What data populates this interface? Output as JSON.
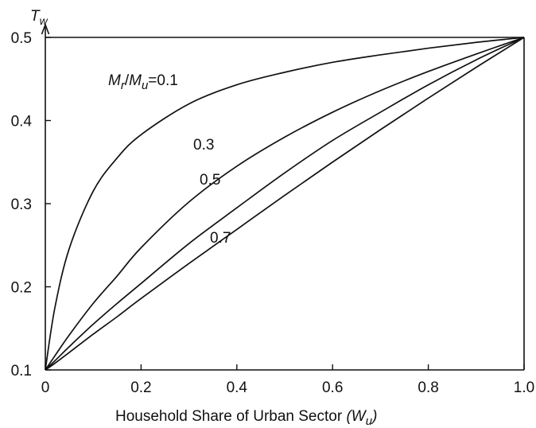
{
  "chart_data": {
    "type": "line",
    "title": "",
    "xlabel_text": "Household Share of Urban Sector",
    "xlabel_var": "W",
    "xlabel_sub": "u",
    "ylabel_var": "T",
    "ylabel_sub": "w",
    "xlim": [
      0,
      1.0
    ],
    "ylim": [
      0.1,
      0.5
    ],
    "x_ticks": [
      "0",
      "0.2",
      "0.4",
      "0.6",
      "0.8",
      "1.0"
    ],
    "y_ticks": [
      "0.1",
      "0.2",
      "0.3",
      "0.4",
      "0.5"
    ],
    "x_tick_values": [
      0,
      0.2,
      0.4,
      0.6,
      0.8,
      1.0
    ],
    "y_tick_values": [
      0.1,
      0.2,
      0.3,
      0.4,
      0.5
    ],
    "grid": false,
    "reference_line": {
      "y": 0.5
    },
    "x": [
      0,
      0.02,
      0.05,
      0.1,
      0.15,
      0.2,
      0.3,
      0.4,
      0.5,
      0.6,
      0.7,
      0.8,
      0.9,
      1.0
    ],
    "series": [
      {
        "label": "0.1",
        "values": [
          0.1,
          0.175,
          0.246,
          0.315,
          0.355,
          0.383,
          0.42,
          0.443,
          0.458,
          0.47,
          0.479,
          0.487,
          0.494,
          0.5
        ]
      },
      {
        "label": "0.3",
        "values": [
          0.1,
          0.117,
          0.142,
          0.18,
          0.213,
          0.247,
          0.302,
          0.345,
          0.38,
          0.41,
          0.436,
          0.459,
          0.48,
          0.5
        ]
      },
      {
        "label": "0.5",
        "values": [
          0.1,
          0.111,
          0.128,
          0.155,
          0.18,
          0.204,
          0.252,
          0.295,
          0.337,
          0.376,
          0.41,
          0.443,
          0.473,
          0.5
        ]
      },
      {
        "label": "0.7",
        "values": [
          0.1,
          0.108,
          0.121,
          0.143,
          0.164,
          0.186,
          0.228,
          0.269,
          0.31,
          0.35,
          0.389,
          0.427,
          0.464,
          0.5
        ]
      }
    ],
    "first_label_prefix": {
      "num": "M",
      "num_sub": "r",
      "slash": "/",
      "den": "M",
      "den_sub": "u",
      "eq": "="
    }
  }
}
